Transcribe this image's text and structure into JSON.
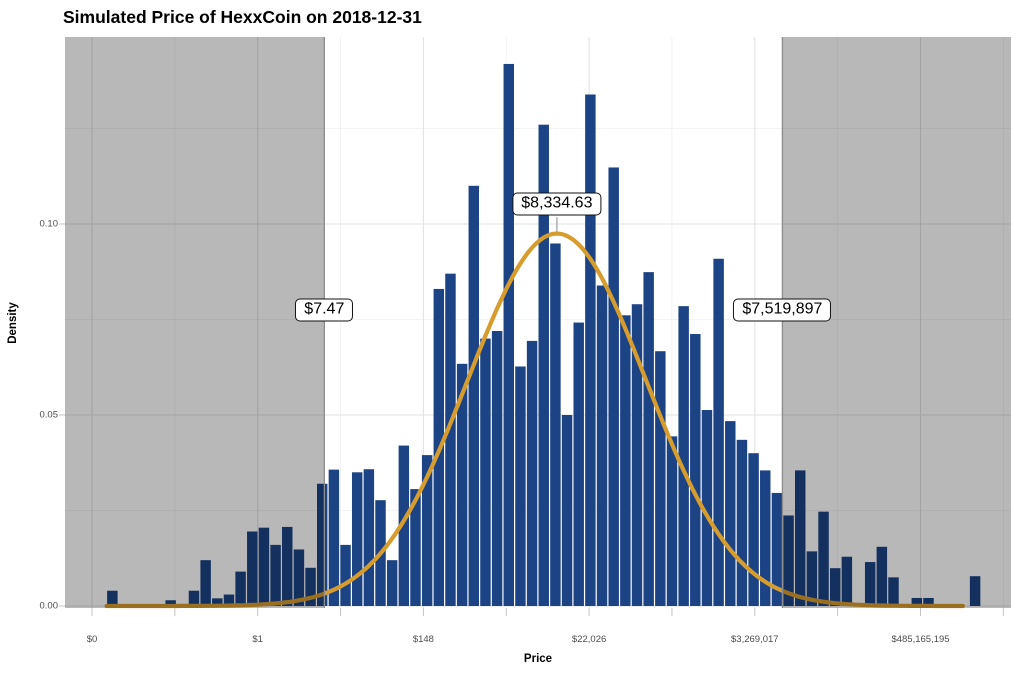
{
  "title": "Simulated Price of HexxCoin on 2018-12-31",
  "chart_data": {
    "type": "histogram",
    "title": "Simulated Price of HexxCoin on 2018-12-31",
    "xlabel": "Price",
    "ylabel": "Density",
    "grid": "on",
    "x_axis": {
      "title": "Price",
      "scale": "log-e",
      "ticks": [
        {
          "label": "$0",
          "ln": -5
        },
        {
          "label": "$1",
          "ln": 0
        },
        {
          "label": "$148",
          "ln": 5
        },
        {
          "label": "$22,026",
          "ln": 10
        },
        {
          "label": "$3,269,017",
          "ln": 15
        },
        {
          "label": "$485,165,195",
          "ln": 20
        }
      ],
      "minor_step_ln": 2.5
    },
    "y_axis": {
      "title": "Density",
      "ticks": [
        {
          "label": "0.00",
          "value": 0
        },
        {
          "label": "0.05",
          "value": 0.05
        },
        {
          "label": "0.10",
          "value": 0.1
        }
      ],
      "minor_values": [
        0.025,
        0.075,
        0.125
      ],
      "ylim": [
        0,
        0.149
      ]
    },
    "histogram": {
      "color": "#1c4383",
      "bin_start_ln": -4.91,
      "bin_width_ln": 0.3518,
      "densities": [
        0,
        0.004,
        0,
        0,
        0,
        0,
        0.0015,
        0,
        0.004,
        0.012,
        0.002,
        0.003,
        0.009,
        0.0195,
        0.0205,
        0.016,
        0.0207,
        0.0148,
        0.01,
        0.032,
        0.0357,
        0.016,
        0.035,
        0.0358,
        0.0277,
        0.012,
        0.042,
        0.0306,
        0.0395,
        0.083,
        0.087,
        0.0634,
        0.11,
        0.07,
        0.072,
        0.1419,
        0.0627,
        0.0694,
        0.126,
        0.0949,
        0.05,
        0.0742,
        0.1339,
        0.0839,
        0.1148,
        0.0761,
        0.079,
        0.0874,
        0.0667,
        0.0444,
        0.0785,
        0.0712,
        0.0513,
        0.0909,
        0.0484,
        0.0435,
        0.04,
        0.0355,
        0.0296,
        0.0237,
        0.0355,
        0.0143,
        0.0247,
        0.0099,
        0.0129,
        0,
        0.0115,
        0.0155,
        0.0075,
        0,
        0.0021,
        0.0021,
        0,
        0,
        0,
        0.0078,
        0,
        0
      ]
    },
    "density_curve": {
      "shape": "gaussian",
      "color": "#d69c2d",
      "center_ln": 9.028,
      "sigma_ln": 2.69,
      "peak_density": 0.0975,
      "from_ln": -4.56,
      "to_ln": 21.3
    },
    "shaded_regions": {
      "description": "dim everything outside the credible interval",
      "overlay_rgba": "rgba(0,0,0,0.28)",
      "boundary_line_color": "#8c8c8c",
      "lower_ln": 2.0109,
      "upper_ln": 15.833
    },
    "annotations": [
      {
        "id": "lower",
        "label": "$7.47",
        "ln": 2.0109,
        "at_density": 0.0775,
        "pointer": false
      },
      {
        "id": "median",
        "label": "$8,334.63",
        "ln": 9.028,
        "at_density": 0.1052,
        "pointer": true
      },
      {
        "id": "upper",
        "label": "$7,519,897",
        "ln": 15.833,
        "at_density": 0.0775,
        "pointer": false
      }
    ]
  }
}
